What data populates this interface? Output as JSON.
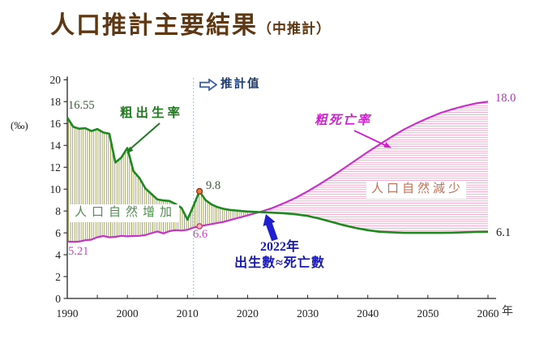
{
  "title": {
    "main": "人口推計主要結果",
    "sub": "（中推計）"
  },
  "chart_data": {
    "type": "line",
    "title": "人口推計主要結果（中推計）",
    "unit_label": "(‰)",
    "x_axis_label": "年",
    "xlim": [
      1990,
      2060
    ],
    "ylim": [
      0,
      20
    ],
    "y_ticks": [
      0,
      2,
      4,
      6,
      8,
      10,
      12,
      14,
      16,
      18,
      20
    ],
    "x_tick_labels": [
      1990,
      2000,
      2010,
      2020,
      2030,
      2040,
      2050,
      2060
    ],
    "x_minor_tick_step": 5,
    "grid": false,
    "legend_position": "none",
    "projection": {
      "start_year": 2011,
      "label": "推計值"
    },
    "series": [
      {
        "name": "粗出生率",
        "color": "#1d8a1d",
        "first_value_label": "16.55",
        "last_value_label": "6.1",
        "marker": {
          "year": 2012,
          "value": 9.8,
          "label": "9.8"
        },
        "points": [
          [
            1990,
            16.55
          ],
          [
            1991,
            15.7
          ],
          [
            1992,
            15.53
          ],
          [
            1993,
            15.58
          ],
          [
            1994,
            15.31
          ],
          [
            1995,
            15.5
          ],
          [
            1996,
            15.18
          ],
          [
            1997,
            15.07
          ],
          [
            1998,
            12.43
          ],
          [
            1999,
            12.89
          ],
          [
            2000,
            13.76
          ],
          [
            2001,
            11.65
          ],
          [
            2002,
            11.02
          ],
          [
            2003,
            10.06
          ],
          [
            2004,
            9.56
          ],
          [
            2005,
            9.06
          ],
          [
            2006,
            8.96
          ],
          [
            2007,
            8.92
          ],
          [
            2008,
            8.64
          ],
          [
            2009,
            8.29
          ],
          [
            2010,
            7.21
          ],
          [
            2011,
            8.48
          ],
          [
            2012,
            9.8
          ],
          [
            2013,
            9.0
          ],
          [
            2014,
            8.6
          ],
          [
            2015,
            8.35
          ],
          [
            2016,
            8.2
          ],
          [
            2017,
            8.1
          ],
          [
            2018,
            8.05
          ],
          [
            2019,
            8.0
          ],
          [
            2020,
            7.95
          ],
          [
            2021,
            7.92
          ],
          [
            2022,
            7.9
          ],
          [
            2024,
            7.85
          ],
          [
            2026,
            7.8
          ],
          [
            2028,
            7.7
          ],
          [
            2030,
            7.55
          ],
          [
            2032,
            7.3
          ],
          [
            2034,
            7.0
          ],
          [
            2036,
            6.7
          ],
          [
            2038,
            6.45
          ],
          [
            2040,
            6.25
          ],
          [
            2042,
            6.1
          ],
          [
            2044,
            6.05
          ],
          [
            2046,
            6.0
          ],
          [
            2048,
            6.0
          ],
          [
            2050,
            6.0
          ],
          [
            2052,
            6.0
          ],
          [
            2054,
            6.02
          ],
          [
            2056,
            6.05
          ],
          [
            2058,
            6.08
          ],
          [
            2060,
            6.1
          ]
        ]
      },
      {
        "name": "粗死亡率",
        "color": "#c832c8",
        "first_value_label": "5.21",
        "last_value_label": "18.0",
        "marker": {
          "year": 2012,
          "value": 6.6,
          "label": "6.6"
        },
        "points": [
          [
            1990,
            5.21
          ],
          [
            1991,
            5.18
          ],
          [
            1992,
            5.21
          ],
          [
            1993,
            5.33
          ],
          [
            1994,
            5.38
          ],
          [
            1995,
            5.6
          ],
          [
            1996,
            5.71
          ],
          [
            1997,
            5.59
          ],
          [
            1998,
            5.64
          ],
          [
            1999,
            5.73
          ],
          [
            2000,
            5.68
          ],
          [
            2001,
            5.71
          ],
          [
            2002,
            5.73
          ],
          [
            2003,
            5.8
          ],
          [
            2004,
            5.97
          ],
          [
            2005,
            6.13
          ],
          [
            2006,
            5.95
          ],
          [
            2007,
            6.16
          ],
          [
            2008,
            6.25
          ],
          [
            2009,
            6.21
          ],
          [
            2010,
            6.28
          ],
          [
            2011,
            6.48
          ],
          [
            2012,
            6.6
          ],
          [
            2014,
            6.8
          ],
          [
            2016,
            7.0
          ],
          [
            2018,
            7.3
          ],
          [
            2020,
            7.6
          ],
          [
            2022,
            7.9
          ],
          [
            2024,
            8.25
          ],
          [
            2026,
            8.7
          ],
          [
            2028,
            9.2
          ],
          [
            2030,
            9.8
          ],
          [
            2032,
            10.45
          ],
          [
            2034,
            11.15
          ],
          [
            2036,
            11.9
          ],
          [
            2038,
            12.65
          ],
          [
            2040,
            13.4
          ],
          [
            2042,
            14.1
          ],
          [
            2044,
            14.8
          ],
          [
            2046,
            15.45
          ],
          [
            2048,
            16.0
          ],
          [
            2050,
            16.5
          ],
          [
            2052,
            16.95
          ],
          [
            2054,
            17.3
          ],
          [
            2056,
            17.6
          ],
          [
            2058,
            17.85
          ],
          [
            2060,
            18.0
          ]
        ]
      }
    ],
    "regions": [
      {
        "label": "人口自然增加",
        "from_year": 1990,
        "to_year": 2022,
        "hatch": "vertical",
        "hatch_color": "#9a9a50"
      },
      {
        "label": "人口自然減少",
        "from_year": 2022,
        "to_year": 2060,
        "hatch": "horizontal",
        "hatch_color": "#f0a8cc"
      }
    ],
    "crossover_annotation": {
      "line1": "2022年",
      "line2": "出生數≈死亡數",
      "year": 2022
    }
  },
  "colors": {
    "title": "#5f3813",
    "birth_line": "#1d8a1d",
    "death_line": "#c832c8",
    "projection_text": "#1f3d6e",
    "crossover_text": "#1818bb",
    "axis": "#222222",
    "divider": "#8fb0cc"
  }
}
